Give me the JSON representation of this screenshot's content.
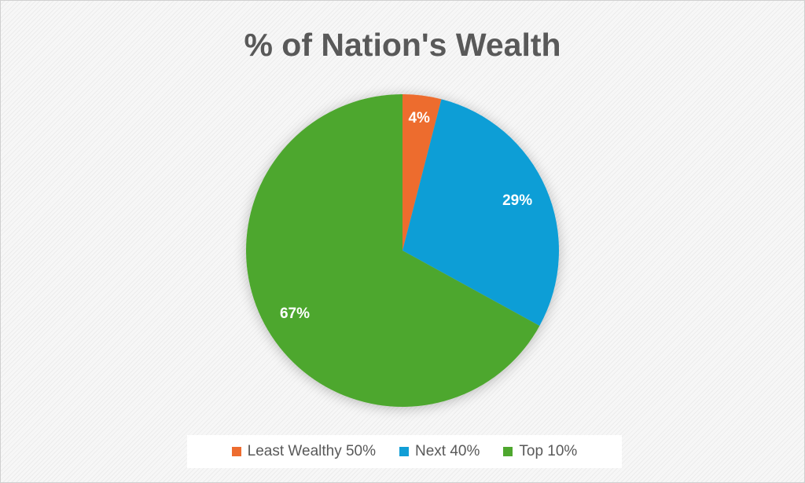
{
  "chart_data": {
    "type": "pie",
    "title": "% of Nation's Wealth",
    "categories": [
      "Least Wealthy 50%",
      "Next 40%",
      "Top 10%"
    ],
    "values": [
      4,
      29,
      67
    ],
    "value_labels": [
      "4%",
      "29%",
      "67%"
    ],
    "colors": [
      "#ed6c2f",
      "#119ed6",
      "#4ea72e"
    ],
    "legend": "bottom"
  }
}
